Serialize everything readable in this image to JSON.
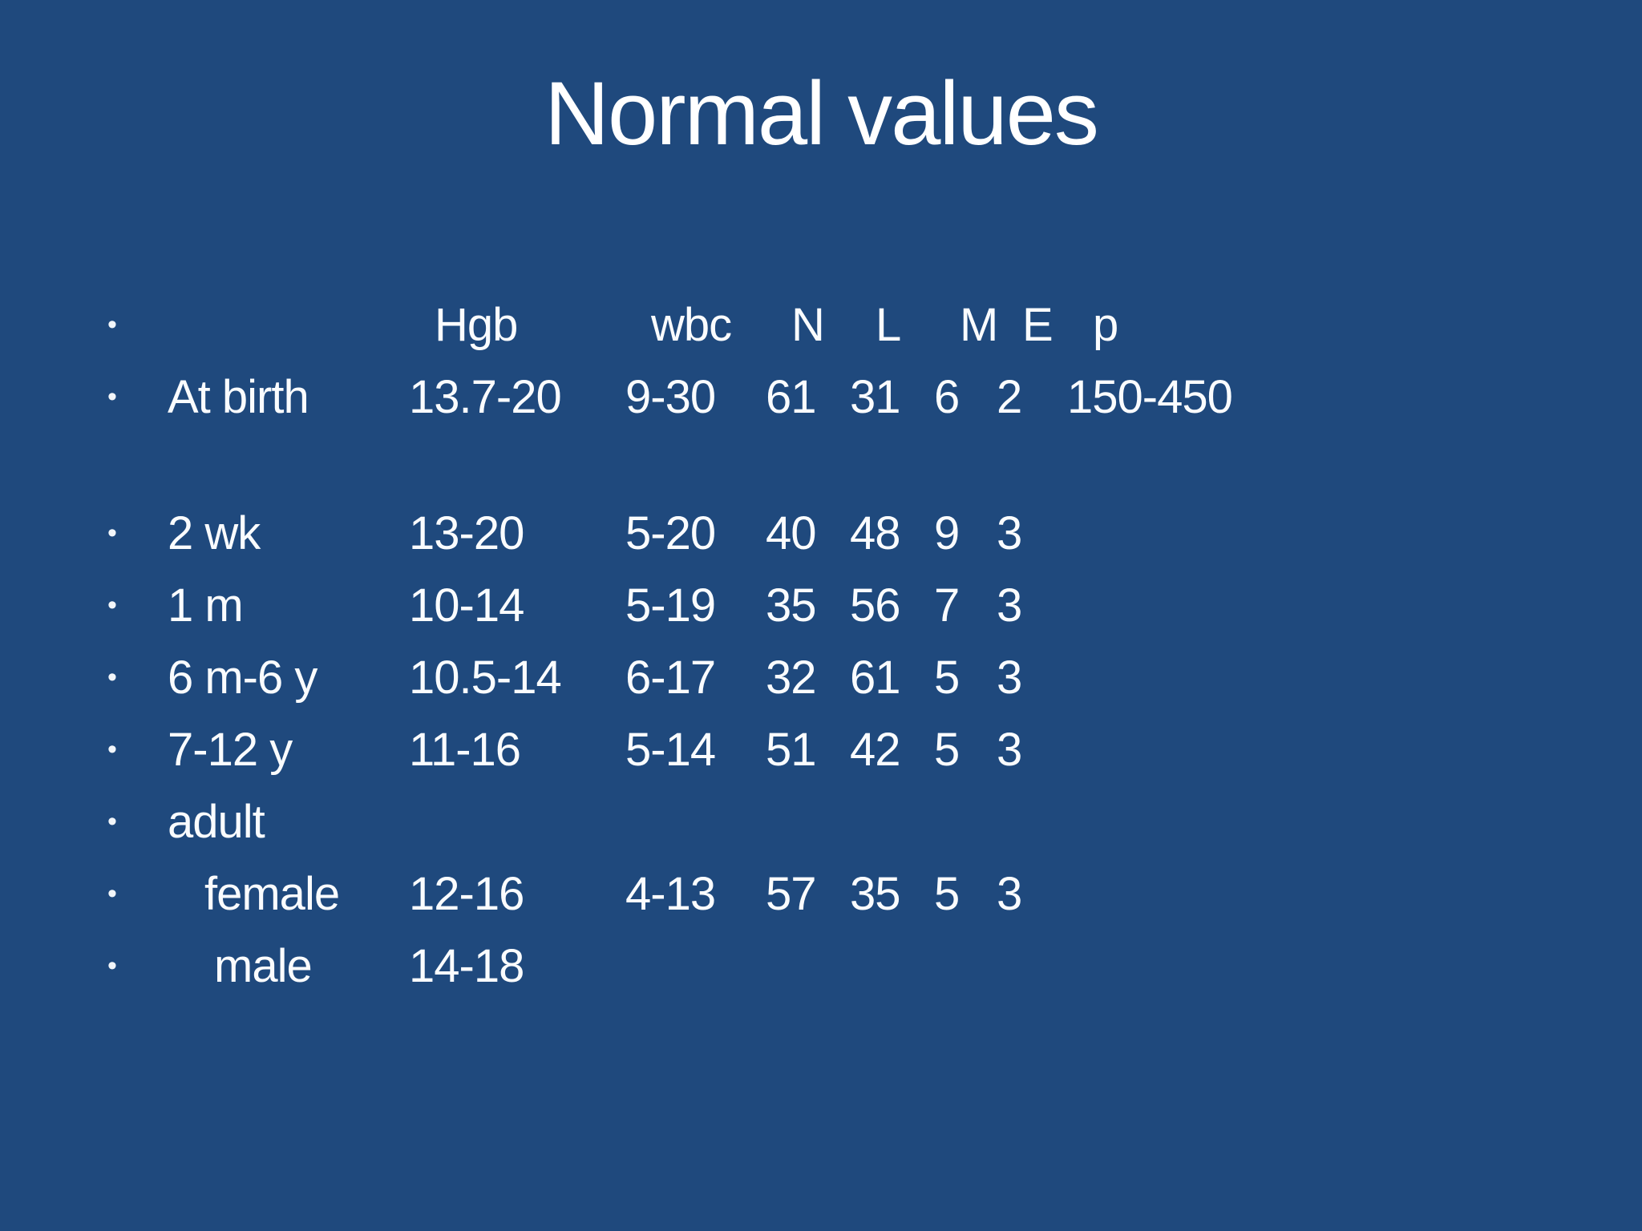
{
  "slide": {
    "title": "Normal values",
    "bullet": "•",
    "background_color": "#1F497D",
    "text_color": "#FAFCFE"
  },
  "table": {
    "header": {
      "label": "",
      "hgb": "Hgb",
      "wbc": "wbc",
      "n": "N",
      "l": "L",
      "m": "M",
      "e": "E",
      "p": "p"
    },
    "rows": [
      {
        "label": "At birth",
        "hgb": "13.7-20",
        "wbc": "9-30",
        "n": "61",
        "l": "31",
        "m": "6",
        "e": "2",
        "p": "150-450"
      },
      {
        "label": "2 wk",
        "hgb": "13-20",
        "wbc": "5-20",
        "n": "40",
        "l": "48",
        "m": "9",
        "e": "3",
        "p": ""
      },
      {
        "label": "1 m",
        "hgb": "10-14",
        "wbc": "5-19",
        "n": "35",
        "l": "56",
        "m": "7",
        "e": "3",
        "p": ""
      },
      {
        "label": "6 m-6 y",
        "hgb": "10.5-14",
        "wbc": "6-17",
        "n": "32",
        "l": "61",
        "m": "5",
        "e": "3",
        "p": ""
      },
      {
        "label": "7-12 y",
        "hgb": "11-16",
        "wbc": "5-14",
        "n": "51",
        "l": "42",
        "m": "5",
        "e": "3",
        "p": ""
      },
      {
        "label": "adult",
        "hgb": "",
        "wbc": "",
        "n": "",
        "l": "",
        "m": "",
        "e": "",
        "p": ""
      },
      {
        "label": "female",
        "hgb": "12-16",
        "wbc": "4-13",
        "n": "57",
        "l": "35",
        "m": "5",
        "e": "3",
        "p": ""
      },
      {
        "label": "male",
        "hgb": "14-18",
        "wbc": "",
        "n": "",
        "l": "",
        "m": "",
        "e": "",
        "p": ""
      }
    ]
  }
}
